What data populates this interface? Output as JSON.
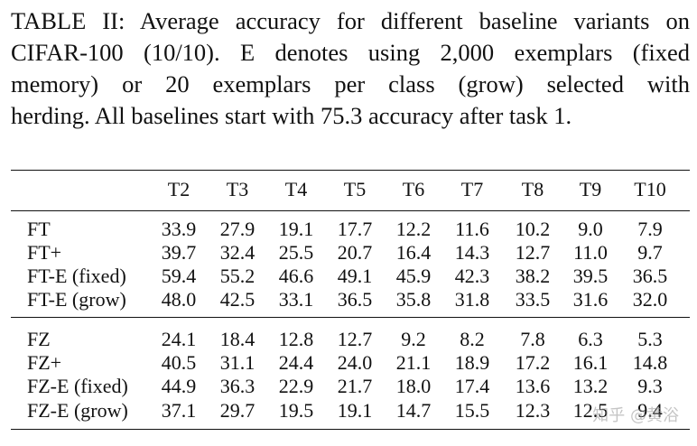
{
  "caption": {
    "lines": [
      "TABLE II: Average accuracy for different baseline variants on",
      "CIFAR-100 (10/10). E denotes using 2,000 exemplars (fixed",
      "memory) or 20 exemplars per class (grow) selected with",
      "herding. All baselines start with 75.3 accuracy after task 1."
    ]
  },
  "table": {
    "headers": [
      "T2",
      "T3",
      "T4",
      "T5",
      "T6",
      "T7",
      "T8",
      "T9",
      "T10"
    ],
    "group1": [
      {
        "label": "FT",
        "values": [
          "33.9",
          "27.9",
          "19.1",
          "17.7",
          "12.2",
          "11.6",
          "10.2",
          "9.0",
          "7.9"
        ]
      },
      {
        "label": "FT+",
        "values": [
          "39.7",
          "32.4",
          "25.5",
          "20.7",
          "16.4",
          "14.3",
          "12.7",
          "11.0",
          "9.7"
        ]
      },
      {
        "label": "FT-E (fixed)",
        "values": [
          "59.4",
          "55.2",
          "46.6",
          "49.1",
          "45.9",
          "42.3",
          "38.2",
          "39.5",
          "36.5"
        ]
      },
      {
        "label": "FT-E (grow)",
        "values": [
          "48.0",
          "42.5",
          "33.1",
          "36.5",
          "35.8",
          "31.8",
          "33.5",
          "31.6",
          "32.0"
        ]
      }
    ],
    "group2": [
      {
        "label": "FZ",
        "values": [
          "24.1",
          "18.4",
          "12.8",
          "12.7",
          "9.2",
          "8.2",
          "7.8",
          "6.3",
          "5.3"
        ]
      },
      {
        "label": "FZ+",
        "values": [
          "40.5",
          "31.1",
          "24.4",
          "24.0",
          "21.1",
          "18.9",
          "17.2",
          "16.1",
          "14.8"
        ]
      },
      {
        "label": "FZ-E (fixed)",
        "values": [
          "44.9",
          "36.3",
          "22.9",
          "21.7",
          "18.0",
          "17.4",
          "13.6",
          "13.2",
          "9.3"
        ]
      },
      {
        "label": "FZ-E (grow)",
        "values": [
          "37.1",
          "29.7",
          "19.5",
          "19.1",
          "14.7",
          "15.5",
          "12.3",
          "12.5",
          "9.4"
        ]
      }
    ]
  },
  "watermark": "知乎 @黄浴"
}
